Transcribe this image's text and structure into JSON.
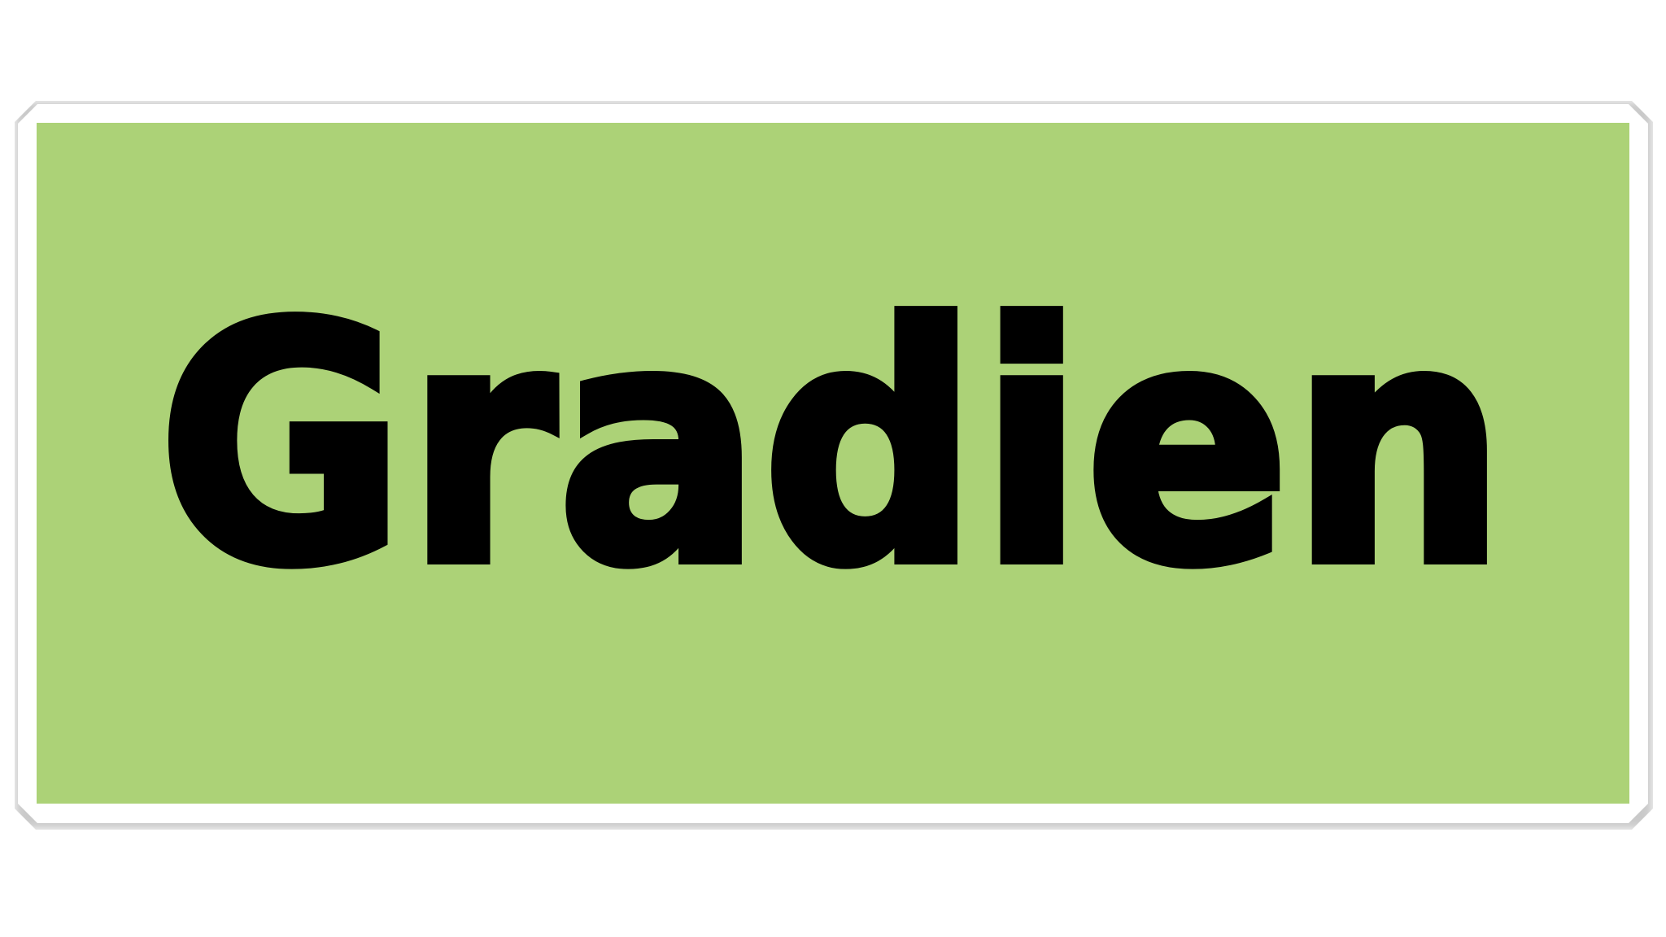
{
  "title": {
    "text": "Gradien"
  },
  "colors": {
    "panel": "#acd277",
    "text": "#000000",
    "frame": "#ffffff"
  }
}
